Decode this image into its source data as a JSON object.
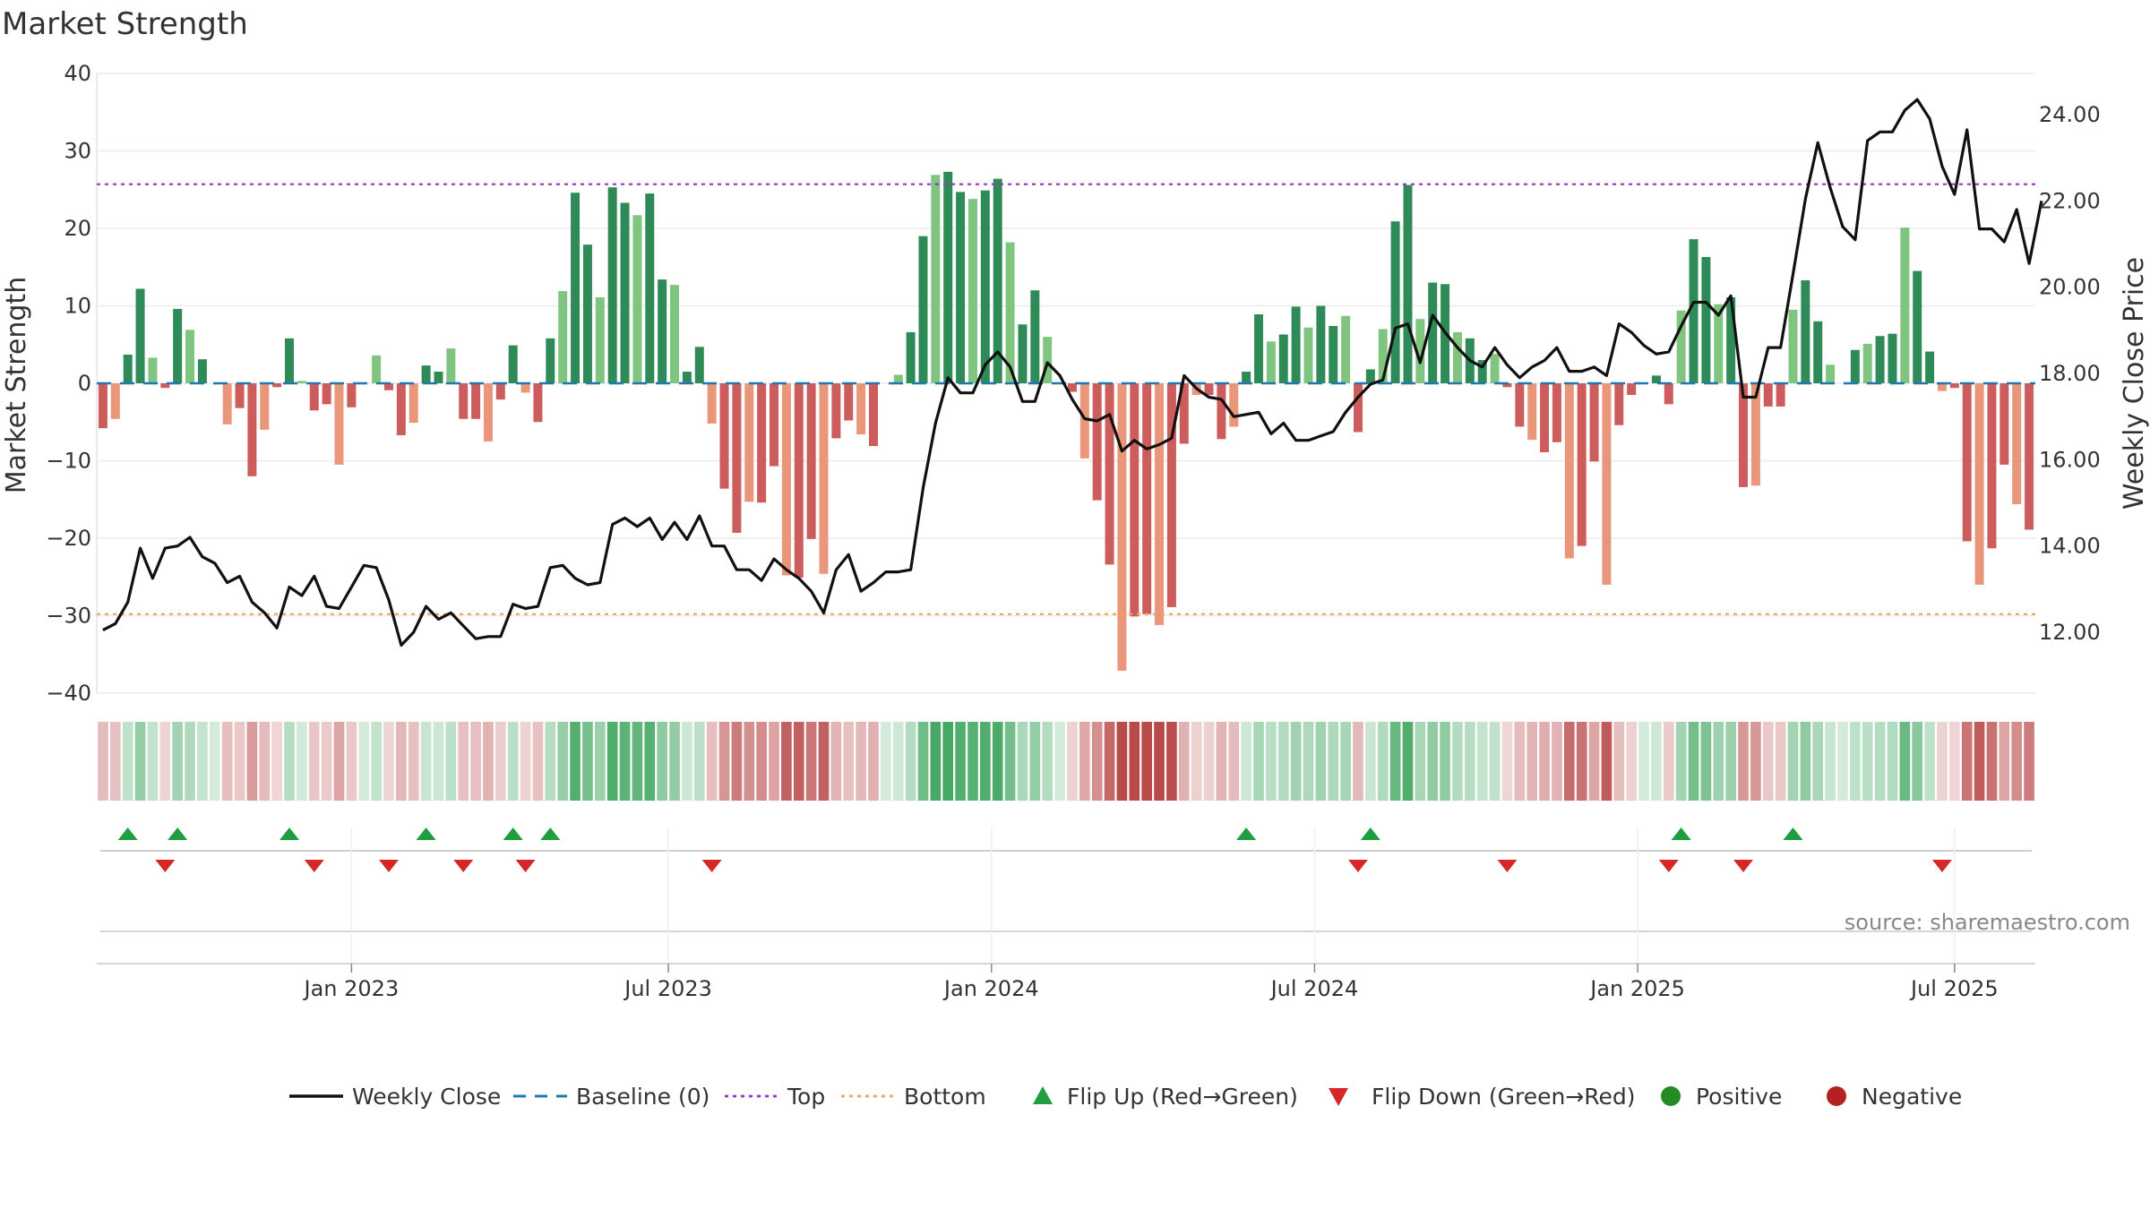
{
  "chart_data": {
    "type": "bar",
    "title": "Market Strength",
    "ylabel_left": "Market Strength",
    "ylabel_right": "Weekly Close Price",
    "ylim_left": [
      -40,
      40
    ],
    "yticks_left": [
      "40",
      "30",
      "20",
      "10",
      "0",
      "−10",
      "−20",
      "−30",
      "−40"
    ],
    "ylim_right": [
      10.5,
      25.0
    ],
    "yticks_right": [
      "24.00",
      "22.00",
      "20.00",
      "18.00",
      "16.00",
      "14.00",
      "12.00"
    ],
    "x_ticks": [
      "Jan 2023",
      "Jul 2023",
      "Jan 2024",
      "Jul 2024",
      "Jan 2025",
      "Jul 2025"
    ],
    "top_level": 25.7,
    "bottom_level": -29.8,
    "strength": [
      -5.8,
      -4.6,
      3.7,
      12.2,
      3.3,
      -0.6,
      9.6,
      6.9,
      3.1,
      0,
      -5.3,
      -3.2,
      -12,
      -6,
      -0.5,
      5.8,
      0.3,
      -3.5,
      -2.7,
      -10.5,
      -3.1,
      0,
      3.6,
      -0.9,
      -6.7,
      -5.1,
      2.3,
      1.5,
      4.5,
      -4.6,
      -4.6,
      -7.5,
      -2.1,
      4.9,
      -1.2,
      -5,
      5.8,
      11.9,
      24.6,
      17.9,
      11.1,
      25.3,
      23.3,
      21.7,
      24.5,
      13.4,
      12.7,
      1.5,
      4.7,
      -5.2,
      -13.6,
      -19.3,
      -15.3,
      -15.4,
      -10.7,
      -24.8,
      -25.1,
      -20.1,
      -24.6,
      -7.1,
      -4.8,
      -6.6,
      -8.1,
      0,
      1.1,
      6.6,
      19,
      26.9,
      27.3,
      24.7,
      23.8,
      24.9,
      26.4,
      18.2,
      7.6,
      12,
      6,
      0,
      -1.1,
      -9.7,
      -15.1,
      -23.4,
      -37.1,
      -30.1,
      -29.8,
      -31.2,
      -28.9,
      -7.8,
      -1.5,
      -1.5,
      -7.2,
      -5.6,
      1.5,
      8.9,
      5.4,
      6.3,
      9.9,
      7.2,
      10,
      7.4,
      8.7,
      -6.3,
      1.8,
      7,
      20.9,
      25.6,
      8.3,
      13,
      12.8,
      6.6,
      5.8,
      3,
      3.8,
      -0.5,
      -5.6,
      -7.3,
      -8.9,
      -7.6,
      -22.6,
      -21,
      -10.1,
      -26,
      -5.4,
      -1.5,
      0,
      1,
      -2.7,
      9.4,
      18.6,
      16.3,
      10.2,
      11.1,
      -13.4,
      -13.2,
      -3,
      -3,
      9.5,
      13.3,
      8,
      2.4,
      0,
      4.3,
      5.1,
      6.1,
      6.4,
      20.1,
      14.5,
      4.1,
      -1,
      -0.6,
      -20.4,
      -26,
      -21.3,
      -10.5,
      -15.6,
      -18.9
    ],
    "close": [
      12.05,
      12.2,
      12.7,
      13.95,
      13.25,
      13.95,
      14,
      14.2,
      13.75,
      13.6,
      13.15,
      13.3,
      12.7,
      12.45,
      12.1,
      13.05,
      12.85,
      13.3,
      12.6,
      12.55,
      13.05,
      13.55,
      13.5,
      12.75,
      11.7,
      12,
      12.6,
      12.3,
      12.45,
      12.15,
      11.85,
      11.9,
      11.9,
      12.65,
      12.55,
      12.6,
      13.5,
      13.55,
      13.25,
      13.1,
      13.15,
      14.5,
      14.65,
      14.45,
      14.65,
      14.15,
      14.55,
      14.15,
      14.7,
      14,
      14,
      13.45,
      13.45,
      13.2,
      13.7,
      13.45,
      13.25,
      12.95,
      12.45,
      13.45,
      13.8,
      12.95,
      13.15,
      13.4,
      13.4,
      13.45,
      15.35,
      16.85,
      17.9,
      17.55,
      17.55,
      18.2,
      18.5,
      18.15,
      17.35,
      17.35,
      18.25,
      17.95,
      17.4,
      16.95,
      16.9,
      17.05,
      16.2,
      16.45,
      16.25,
      16.35,
      16.5,
      17.95,
      17.65,
      17.45,
      17.4,
      17,
      17.05,
      17.1,
      16.6,
      16.85,
      16.45,
      16.45,
      16.55,
      16.65,
      17.1,
      17.45,
      17.75,
      17.85,
      19.05,
      19.15,
      18.25,
      19.35,
      18.95,
      18.6,
      18.3,
      18.15,
      18.6,
      18.2,
      17.9,
      18.15,
      18.3,
      18.6,
      18.05,
      18.05,
      18.15,
      17.95,
      19.15,
      18.95,
      18.65,
      18.45,
      18.5,
      19.1,
      19.65,
      19.65,
      19.35,
      19.8,
      17.45,
      17.45,
      18.6,
      18.6,
      20.3,
      22.05,
      23.35,
      22.3,
      21.4,
      21.1,
      23.4,
      23.6,
      23.6,
      24.1,
      24.35,
      23.9,
      22.8,
      22.15,
      23.65,
      21.35,
      21.35,
      21.05,
      21.8,
      20.55,
      22
    ],
    "legend": [
      "Weekly Close",
      "Baseline (0)",
      "Top",
      "Bottom",
      "Flip Up (Red→Green)",
      "Flip Down (Green→Red)",
      "Positive",
      "Negative"
    ],
    "source": "source: sharemaestro.com"
  },
  "colors": {
    "pos_strong": "#2e8b57",
    "pos_light": "#7fc47f",
    "neg_strong": "#cd5c5c",
    "neg_light": "#e9967a",
    "close_line": "#111111",
    "baseline": "#1f77b4",
    "top": "#9932cc",
    "bottom": "#f4a460",
    "flip_up": "#1e9e3e",
    "flip_down": "#d62728",
    "positive_dot": "#228b22",
    "negative_dot": "#b22222"
  }
}
